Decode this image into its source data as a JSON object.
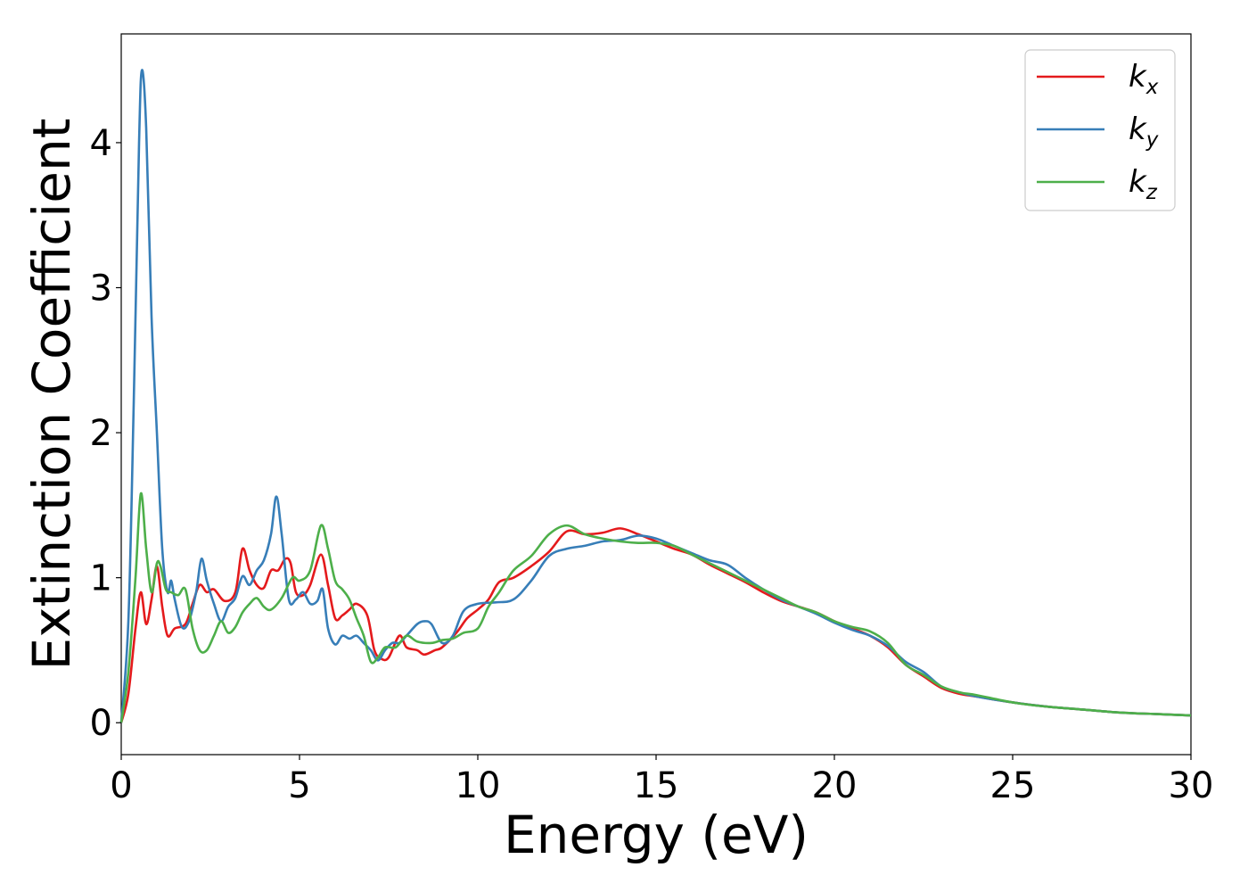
{
  "chart_data": {
    "type": "line",
    "xlabel": "Energy (eV)",
    "ylabel": "Extinction Coefficient",
    "xlim": [
      0,
      30
    ],
    "ylim": [
      -0.22,
      4.75
    ],
    "xticks": [
      0,
      5,
      10,
      15,
      20,
      25,
      30
    ],
    "yticks": [
      0,
      1,
      2,
      3,
      4
    ],
    "grid": false,
    "legend_position": "top-right",
    "series": [
      {
        "name": "k_x",
        "label_base": "k",
        "label_sub": "x",
        "color": "#e41a1c",
        "x": [
          0,
          0.2,
          0.4,
          0.55,
          0.7,
          0.85,
          1.0,
          1.15,
          1.3,
          1.5,
          1.8,
          2.0,
          2.2,
          2.4,
          2.6,
          2.9,
          3.2,
          3.4,
          3.6,
          3.8,
          4.0,
          4.2,
          4.4,
          4.6,
          4.75,
          4.9,
          5.1,
          5.3,
          5.6,
          5.8,
          6.0,
          6.2,
          6.4,
          6.6,
          6.9,
          7.1,
          7.3,
          7.5,
          7.8,
          8.0,
          8.3,
          8.5,
          8.8,
          9.0,
          9.4,
          9.7,
          10.0,
          10.3,
          10.6,
          11.0,
          11.5,
          12.0,
          12.5,
          13.0,
          13.5,
          14.0,
          14.5,
          15.0,
          15.5,
          16.0,
          16.5,
          17.0,
          17.5,
          18.0,
          18.5,
          19.0,
          19.5,
          20.0,
          20.5,
          21.0,
          21.5,
          22.0,
          22.5,
          23.0,
          23.5,
          24.0,
          25.0,
          26.0,
          27.0,
          28.0,
          29.0,
          30.0
        ],
        "y": [
          0.0,
          0.2,
          0.65,
          0.9,
          0.68,
          0.85,
          1.08,
          0.8,
          0.6,
          0.65,
          0.68,
          0.82,
          0.95,
          0.9,
          0.92,
          0.84,
          0.9,
          1.2,
          1.05,
          0.95,
          0.93,
          1.05,
          1.05,
          1.13,
          1.1,
          0.9,
          0.88,
          0.95,
          1.16,
          0.95,
          0.72,
          0.74,
          0.78,
          0.82,
          0.74,
          0.5,
          0.44,
          0.45,
          0.6,
          0.52,
          0.5,
          0.47,
          0.5,
          0.52,
          0.62,
          0.72,
          0.78,
          0.85,
          0.97,
          1.0,
          1.08,
          1.18,
          1.32,
          1.3,
          1.31,
          1.34,
          1.3,
          1.25,
          1.2,
          1.16,
          1.09,
          1.03,
          0.97,
          0.9,
          0.84,
          0.8,
          0.76,
          0.7,
          0.65,
          0.6,
          0.52,
          0.4,
          0.32,
          0.24,
          0.2,
          0.18,
          0.14,
          0.11,
          0.09,
          0.07,
          0.06,
          0.05
        ]
      },
      {
        "name": "k_y",
        "label_base": "k",
        "label_sub": "y",
        "color": "#377eb8",
        "x": [
          0,
          0.2,
          0.35,
          0.5,
          0.58,
          0.7,
          0.85,
          1.0,
          1.15,
          1.3,
          1.4,
          1.5,
          1.7,
          1.9,
          2.1,
          2.25,
          2.4,
          2.6,
          2.8,
          3.0,
          3.2,
          3.4,
          3.6,
          3.8,
          4.0,
          4.2,
          4.35,
          4.5,
          4.7,
          4.9,
          5.1,
          5.3,
          5.5,
          5.65,
          5.8,
          6.0,
          6.2,
          6.4,
          6.6,
          6.8,
          7.0,
          7.2,
          7.4,
          7.6,
          7.8,
          8.0,
          8.3,
          8.5,
          8.7,
          9.0,
          9.3,
          9.6,
          10.0,
          10.5,
          11.0,
          11.5,
          12.0,
          12.5,
          13.0,
          13.5,
          14.0,
          14.5,
          15.0,
          15.5,
          16.0,
          16.5,
          17.0,
          17.5,
          18.0,
          18.5,
          19.0,
          19.5,
          20.0,
          20.5,
          21.0,
          21.5,
          22.0,
          22.5,
          23.0,
          23.5,
          24.0,
          25.0,
          26.0,
          27.0,
          28.0,
          29.0,
          30.0
        ],
        "y": [
          0.0,
          0.7,
          2.2,
          4.0,
          4.5,
          4.1,
          2.8,
          2.0,
          1.2,
          0.9,
          0.98,
          0.85,
          0.66,
          0.7,
          0.9,
          1.13,
          0.98,
          0.82,
          0.7,
          0.8,
          0.86,
          1.01,
          0.95,
          1.05,
          1.12,
          1.3,
          1.56,
          1.3,
          0.85,
          0.85,
          0.9,
          0.82,
          0.84,
          0.92,
          0.65,
          0.54,
          0.6,
          0.58,
          0.6,
          0.55,
          0.5,
          0.43,
          0.5,
          0.55,
          0.55,
          0.6,
          0.68,
          0.7,
          0.68,
          0.55,
          0.6,
          0.77,
          0.82,
          0.83,
          0.85,
          0.98,
          1.15,
          1.2,
          1.22,
          1.25,
          1.26,
          1.29,
          1.27,
          1.22,
          1.17,
          1.12,
          1.09,
          1.0,
          0.92,
          0.85,
          0.8,
          0.75,
          0.69,
          0.64,
          0.6,
          0.53,
          0.42,
          0.35,
          0.25,
          0.21,
          0.18,
          0.14,
          0.11,
          0.09,
          0.07,
          0.06,
          0.05
        ]
      },
      {
        "name": "k_z",
        "label_base": "k",
        "label_sub": "z",
        "color": "#4daf4a",
        "x": [
          0,
          0.2,
          0.4,
          0.55,
          0.7,
          0.85,
          1.0,
          1.1,
          1.25,
          1.4,
          1.6,
          1.8,
          2.0,
          2.2,
          2.4,
          2.6,
          2.8,
          3.0,
          3.2,
          3.4,
          3.6,
          3.8,
          4.0,
          4.2,
          4.5,
          4.8,
          5.0,
          5.3,
          5.6,
          5.8,
          6.0,
          6.2,
          6.4,
          6.6,
          6.8,
          7.0,
          7.2,
          7.4,
          7.7,
          8.0,
          8.3,
          8.7,
          9.0,
          9.3,
          9.6,
          10.0,
          10.3,
          10.6,
          11.0,
          11.5,
          12.0,
          12.5,
          13.0,
          13.5,
          14.0,
          14.5,
          15.0,
          15.5,
          16.0,
          16.5,
          17.0,
          17.5,
          18.0,
          18.5,
          19.0,
          19.5,
          20.0,
          20.5,
          21.0,
          21.5,
          22.0,
          22.5,
          23.0,
          23.5,
          24.0,
          25.0,
          26.0,
          27.0,
          28.0,
          29.0,
          30.0
        ],
        "y": [
          0.0,
          0.35,
          1.0,
          1.58,
          1.2,
          0.9,
          1.1,
          1.08,
          0.92,
          0.9,
          0.88,
          0.92,
          0.65,
          0.5,
          0.5,
          0.6,
          0.7,
          0.62,
          0.66,
          0.76,
          0.82,
          0.86,
          0.8,
          0.78,
          0.86,
          1.0,
          0.98,
          1.05,
          1.36,
          1.2,
          0.98,
          0.92,
          0.85,
          0.72,
          0.6,
          0.42,
          0.45,
          0.52,
          0.52,
          0.6,
          0.56,
          0.55,
          0.57,
          0.58,
          0.62,
          0.65,
          0.8,
          0.9,
          1.05,
          1.15,
          1.3,
          1.36,
          1.3,
          1.27,
          1.25,
          1.24,
          1.24,
          1.22,
          1.16,
          1.1,
          1.04,
          0.98,
          0.92,
          0.86,
          0.8,
          0.76,
          0.7,
          0.66,
          0.63,
          0.55,
          0.4,
          0.33,
          0.25,
          0.21,
          0.19,
          0.14,
          0.11,
          0.09,
          0.07,
          0.06,
          0.05
        ]
      }
    ]
  }
}
